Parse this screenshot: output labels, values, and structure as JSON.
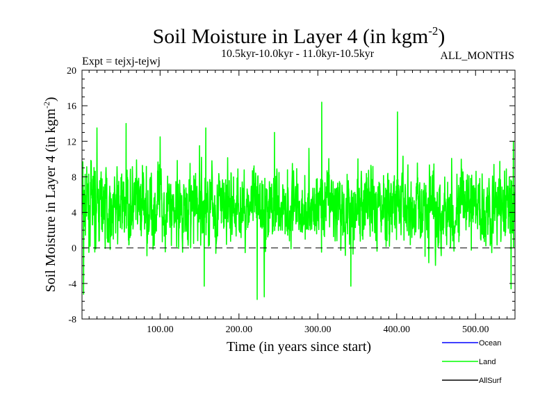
{
  "chart_data": {
    "type": "line",
    "title": "Soil Moisture in Layer 4 (in kgm",
    "title_sup": "-2",
    "title_end": ")",
    "subtitle_left": "Expt = tejxj-tejwj",
    "subtitle_center": "10.5kyr-10.0kyr - 11.0kyr-10.5kyr",
    "subtitle_right": "ALL_MONTHS",
    "xlabel": "Time (in years since start)",
    "ylabel": "Soil Moisture in Layer 4 (in kgm",
    "ylabel_sup": "-2",
    "ylabel_end": ")",
    "xlim": [
      1,
      550
    ],
    "ylim": [
      -8,
      20
    ],
    "x_ticks": [
      100,
      200,
      300,
      400,
      500
    ],
    "x_tick_labels": [
      "100.00",
      "200.00",
      "300.00",
      "400.00",
      "500.00"
    ],
    "y_ticks": [
      -8,
      -4,
      0,
      4,
      8,
      12,
      16,
      20
    ],
    "y_tick_labels": [
      "-8",
      "-4",
      "0",
      "4",
      "8",
      "12",
      "16",
      "20"
    ],
    "zero_line": 0,
    "series": [
      {
        "name": "Ocean",
        "color": "#0000ff",
        "values": []
      },
      {
        "name": "Land",
        "color": "#00ff00",
        "mean": 4.6,
        "min": -5.8,
        "max": 16.4,
        "seed": 7
      },
      {
        "name": "AllSurf",
        "color": "#000000",
        "values": []
      }
    ],
    "land_extremes": [
      {
        "x": 20,
        "y": 13.5
      },
      {
        "x": 57,
        "y": 14.0
      },
      {
        "x": 100,
        "y": 12.5
      },
      {
        "x": 150,
        "y": 11.5
      },
      {
        "x": 158,
        "y": 13.5
      },
      {
        "x": 223,
        "y": -5.8
      },
      {
        "x": 232,
        "y": -5.5
      },
      {
        "x": 305,
        "y": 16.4
      },
      {
        "x": 342,
        "y": -4.3
      },
      {
        "x": 401,
        "y": 15.3
      },
      {
        "x": 156,
        "y": -4.3
      },
      {
        "x": 3,
        "y": -5.2
      },
      {
        "x": 545,
        "y": -4.6
      },
      {
        "x": 548,
        "y": 12.0
      },
      {
        "x": 245,
        "y": 13.0
      }
    ]
  }
}
